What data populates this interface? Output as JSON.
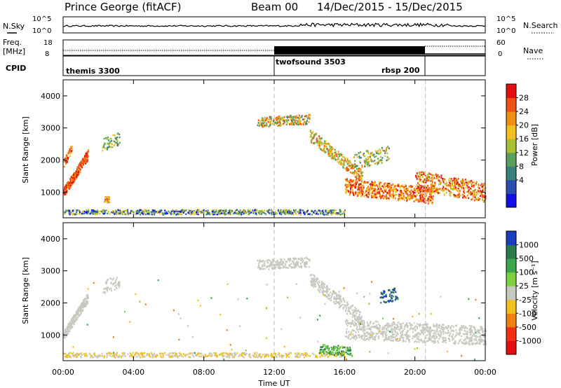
{
  "header": {
    "station": "Prince George (fitACF)",
    "beam": "Beam 00",
    "date_range": "14/Dec/2015 - 15/Dec/2015"
  },
  "noise_panel": {
    "left_label": "N.Sky",
    "right_label": "N.Search",
    "left_ticks": [
      "10^5",
      "10^0"
    ],
    "right_ticks": [
      "10^5",
      "10^0"
    ]
  },
  "freq_panel": {
    "left_label_1": "Freq.",
    "left_label_2": "[MHz]",
    "right_label": "Nave",
    "left_ticks": [
      "18",
      "8"
    ],
    "right_ticks": [
      "60",
      "0"
    ]
  },
  "cpid_panel": {
    "label": "CPID",
    "modes": [
      "themis 3300",
      "twofsound 3503",
      "rbsp 200"
    ]
  },
  "x_axis": {
    "label": "Time UT",
    "ticks": [
      "00:00",
      "04:00",
      "08:00",
      "12:00",
      "16:00",
      "20:00",
      "00:00"
    ]
  },
  "chart_data": [
    {
      "type": "heatmap",
      "name": "power",
      "ylabel": "Slant Range [km]",
      "yticks": [
        "1000",
        "2000",
        "3000",
        "4000"
      ],
      "ylim": [
        200,
        4500
      ],
      "xlim_hours": [
        0,
        24
      ],
      "colorbar_label": "Power [dB]",
      "colorbar_ticks": [
        "4",
        "8",
        "12",
        "16",
        "20",
        "24",
        "28"
      ],
      "colors": [
        "#1010e0",
        "#2b4fb0",
        "#3a7f7a",
        "#5a9f5a",
        "#a8c030",
        "#f0c020",
        "#f09010",
        "#f05010",
        "#e01010"
      ]
    },
    {
      "type": "heatmap",
      "name": "velocity",
      "ylabel": "Slant Range [km]",
      "yticks": [
        "1000",
        "2000",
        "3000",
        "4000"
      ],
      "ylim": [
        200,
        4500
      ],
      "xlim_hours": [
        0,
        24
      ],
      "colorbar_label": "Velocity [m s⁻¹]",
      "colorbar_ticks": [
        "1000",
        "500",
        "100",
        "25",
        "-25",
        "-100",
        "-500",
        "-1000"
      ],
      "colors": [
        "#1a3cbf",
        "#2a7a4a",
        "#3aa84a",
        "#7fd040",
        "#c8c8c0",
        "#f0c020",
        "#f08010",
        "#f03010",
        "#e01010"
      ]
    }
  ]
}
